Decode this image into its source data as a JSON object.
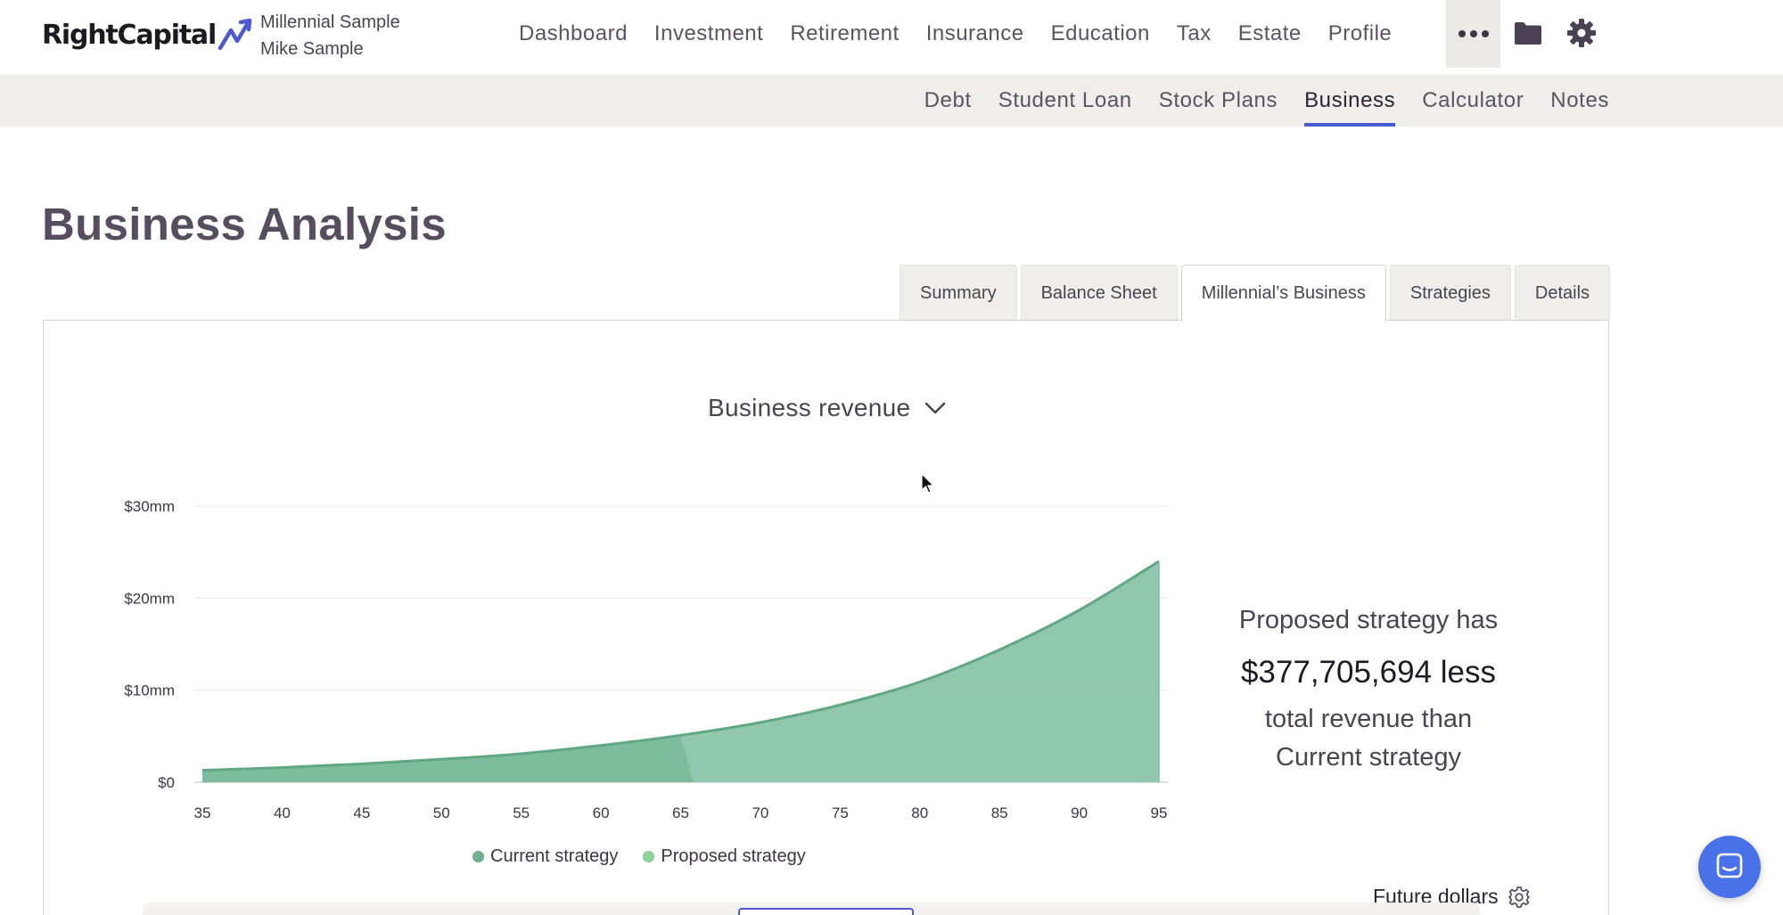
{
  "app": {
    "logo_text": "RightCapital",
    "client_line1": "Millennial Sample",
    "client_line2": "Mike Sample"
  },
  "main_nav": [
    "Dashboard",
    "Investment",
    "Retirement",
    "Insurance",
    "Education",
    "Tax",
    "Estate",
    "Profile"
  ],
  "icons": {
    "more": "more-icon",
    "folder": "folder-icon",
    "settings": "gear-icon",
    "chat": "chat-icon"
  },
  "sub_nav": {
    "items": [
      "Debt",
      "Student Loan",
      "Stock Plans",
      "Business",
      "Calculator",
      "Notes"
    ],
    "active": "Business"
  },
  "page_title": "Business Analysis",
  "tabs": {
    "items": [
      "Summary",
      "Balance Sheet",
      "Millennial’s Business",
      "Strategies",
      "Details"
    ],
    "active": "Millennial’s Business"
  },
  "metric_select": {
    "value": "Business revenue"
  },
  "summary": {
    "line1": "Proposed strategy has",
    "line2": "$377,705,694 less",
    "line3": "total revenue than",
    "line4": "Current strategy"
  },
  "future_dollars_label": "Future dollars",
  "colors": {
    "accent": "#4a5ad0",
    "current_strategy": "#6db390",
    "proposed_strategy": "#8fd69e",
    "area_fill": "#8cc4ab",
    "chat_button": "#4a72e8"
  },
  "chart_data": {
    "type": "area",
    "title": "",
    "xlabel": "",
    "ylabel": "",
    "x": [
      35,
      40,
      45,
      50,
      55,
      60,
      65,
      70,
      75,
      80,
      85,
      90,
      95
    ],
    "xlim": [
      35,
      95
    ],
    "ylim": [
      0,
      30
    ],
    "y_ticks": [
      "$0",
      "$10mm",
      "$20mm",
      "$30mm"
    ],
    "x_ticks": [
      "35",
      "40",
      "45",
      "50",
      "55",
      "60",
      "65",
      "70",
      "75",
      "80",
      "85",
      "90",
      "95"
    ],
    "grid": true,
    "legend_position": "bottom-center",
    "series": [
      {
        "name": "Current strategy",
        "values": [
          1.3,
          1.6,
          2.0,
          2.5,
          3.1,
          4.0,
          5.1,
          6.5,
          8.4,
          10.9,
          14.4,
          18.7,
          24.0
        ]
      },
      {
        "name": "Proposed strategy",
        "values": [
          1.3,
          1.6,
          2.0,
          2.5,
          3.1,
          4.0,
          5.1,
          0,
          0,
          0,
          0,
          0,
          0
        ]
      }
    ]
  }
}
